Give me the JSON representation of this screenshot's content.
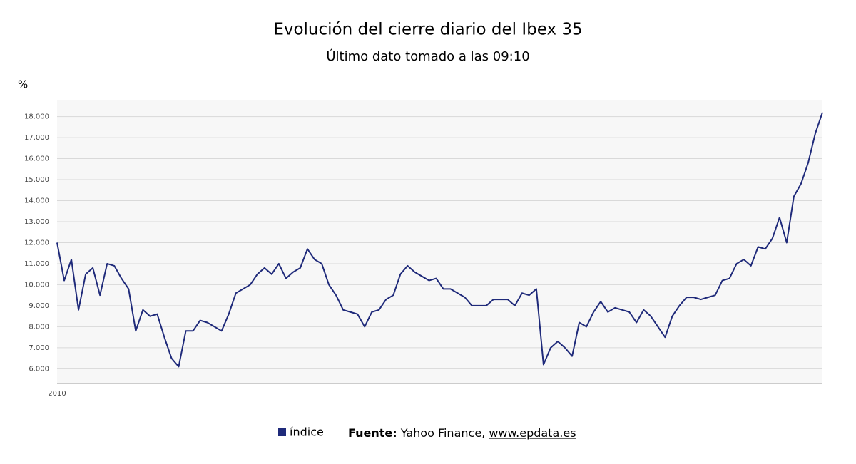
{
  "chart_data": {
    "type": "line",
    "title": "Evolución del cierre diario del Ibex 35",
    "subtitle": "Último dato tomado a las 09:10",
    "y_label": "%",
    "source": {
      "label": "Fuente:",
      "text": "Yahoo Finance,",
      "link": "www.epdata.es"
    },
    "categories": [
      "2010",
      null,
      null,
      null,
      null,
      null,
      null,
      null,
      null,
      null,
      null,
      null,
      null,
      null,
      null,
      null,
      null,
      null,
      null,
      null,
      null,
      null,
      null,
      null,
      null,
      null,
      null,
      null,
      null,
      null,
      null,
      null,
      null,
      null,
      null,
      null,
      null,
      null,
      null,
      null,
      null,
      null,
      null,
      null,
      null,
      null,
      null,
      null,
      null,
      null,
      null,
      null,
      null,
      null,
      null,
      null,
      null,
      null,
      null,
      null,
      null,
      null,
      null,
      null,
      null,
      null,
      null,
      null,
      null,
      null,
      null,
      null,
      null,
      null,
      null,
      null,
      null,
      null,
      null,
      null,
      null,
      null,
      null,
      null,
      null,
      null,
      null,
      null,
      null,
      null,
      null,
      null,
      null,
      null,
      null,
      null,
      null,
      null,
      null,
      null,
      null,
      null,
      null,
      null,
      null,
      null,
      null,
      null
    ],
    "series": [
      {
        "name": "índice",
        "color": "#1f2a7a",
        "values": [
          12000,
          10200,
          11200,
          8800,
          10500,
          10800,
          9500,
          11000,
          10900,
          10300,
          9800,
          7800,
          8800,
          8500,
          8600,
          7500,
          6500,
          6100,
          7800,
          7800,
          8300,
          8200,
          8000,
          7800,
          8600,
          9600,
          9800,
          10000,
          10500,
          10800,
          10500,
          11000,
          10300,
          10600,
          10800,
          11700,
          11200,
          11000,
          10000,
          9500,
          8800,
          8700,
          8600,
          8000,
          8700,
          8800,
          9300,
          9500,
          10500,
          10900,
          10600,
          10400,
          10200,
          10300,
          9800,
          9800,
          9600,
          9400,
          9000,
          9000,
          9000,
          9300,
          9300,
          9300,
          9000,
          9600,
          9500,
          9800,
          6200,
          7000,
          7300,
          7000,
          6600,
          8200,
          8000,
          8700,
          9200,
          8700,
          8900,
          8800,
          8700,
          8200,
          8800,
          8500,
          8000,
          7500,
          8500,
          9000,
          9400,
          9400,
          9300,
          9400,
          9500,
          10200,
          10300,
          11000,
          11200,
          10900,
          11800,
          11700,
          12200,
          13200,
          12000,
          14200,
          14800,
          15800,
          17200,
          18200
        ]
      }
    ],
    "ylim": [
      5300,
      18800
    ],
    "yticks": [
      {
        "value": 6000,
        "label": "6.000"
      },
      {
        "value": 7000,
        "label": "7.000"
      },
      {
        "value": 8000,
        "label": "8.000"
      },
      {
        "value": 9000,
        "label": "9.000"
      },
      {
        "value": 10000,
        "label": "10.000"
      },
      {
        "value": 11000,
        "label": "11.000"
      },
      {
        "value": 12000,
        "label": "12.000"
      },
      {
        "value": 13000,
        "label": "13.000"
      },
      {
        "value": 14000,
        "label": "14.000"
      },
      {
        "value": 15000,
        "label": "15.000"
      },
      {
        "value": 16000,
        "label": "16.000"
      },
      {
        "value": 17000,
        "label": "17.000"
      },
      {
        "value": 18000,
        "label": "18.000"
      }
    ],
    "grid": true
  }
}
